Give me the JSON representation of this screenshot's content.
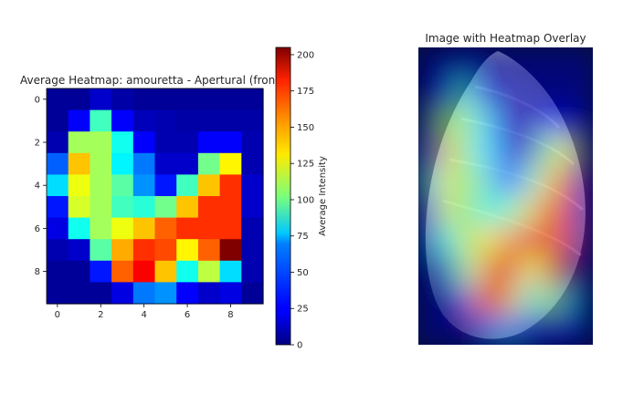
{
  "chart_data": [
    {
      "type": "heatmap",
      "title": "Average Heatmap: amouretta - Apertural (fron",
      "x": [
        0,
        1,
        2,
        3,
        4,
        5,
        6,
        7,
        8,
        9
      ],
      "y": [
        0,
        1,
        2,
        3,
        4,
        5,
        6,
        7,
        8,
        9
      ],
      "xticks": [
        "0",
        "2",
        "4",
        "6",
        "8"
      ],
      "yticks": [
        "0",
        "2",
        "4",
        "6",
        "8"
      ],
      "colormap": "jet",
      "values": [
        [
          5,
          5,
          15,
          8,
          5,
          5,
          5,
          5,
          5,
          5
        ],
        [
          5,
          25,
          90,
          25,
          12,
          10,
          8,
          8,
          8,
          8
        ],
        [
          10,
          110,
          110,
          80,
          25,
          10,
          10,
          25,
          25,
          10
        ],
        [
          45,
          140,
          110,
          75,
          50,
          15,
          15,
          100,
          130,
          10
        ],
        [
          70,
          125,
          110,
          95,
          55,
          30,
          90,
          140,
          170,
          15
        ],
        [
          30,
          120,
          110,
          90,
          85,
          100,
          140,
          170,
          170,
          15
        ],
        [
          20,
          80,
          110,
          125,
          140,
          160,
          170,
          170,
          170,
          10
        ],
        [
          10,
          15,
          95,
          145,
          170,
          165,
          130,
          160,
          205,
          10
        ],
        [
          5,
          5,
          30,
          160,
          180,
          140,
          80,
          115,
          70,
          10
        ],
        [
          5,
          5,
          5,
          20,
          50,
          55,
          25,
          15,
          20,
          5
        ]
      ],
      "colorbar": {
        "label": "Average Intensity",
        "range": [
          0,
          205
        ],
        "ticks": [
          "0",
          "25",
          "50",
          "75",
          "100",
          "125",
          "150",
          "175",
          "200"
        ]
      }
    },
    {
      "type": "heatmap",
      "title": "Image with Heatmap Overlay",
      "axis": "off",
      "background": "shell photograph (apertural view)"
    }
  ]
}
